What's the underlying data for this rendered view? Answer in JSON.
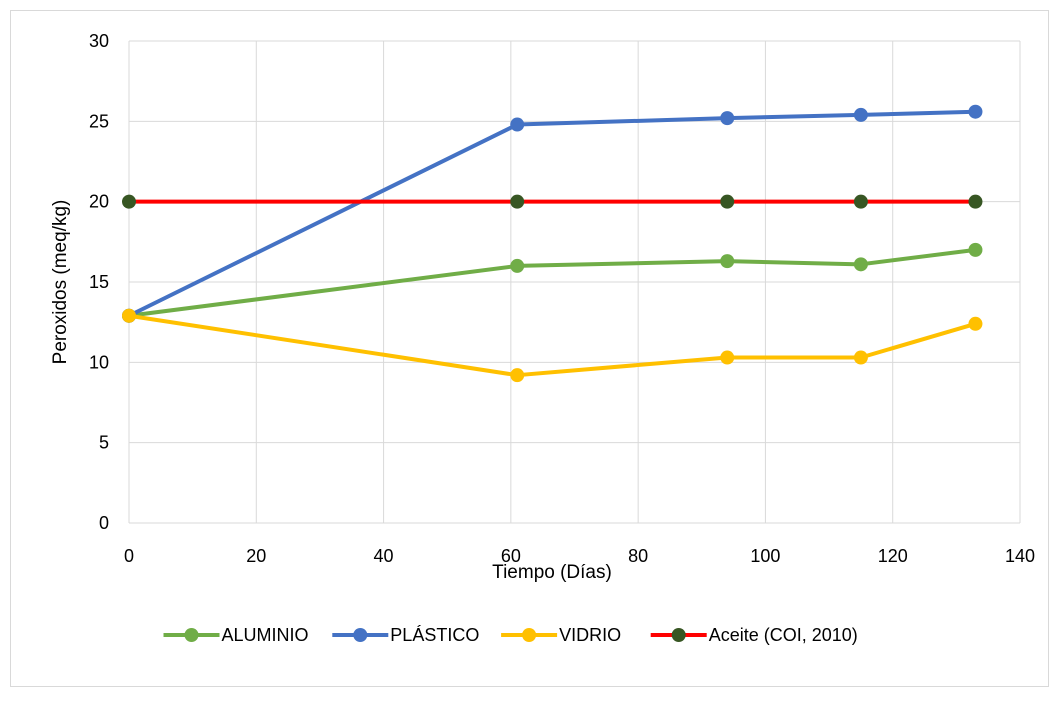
{
  "chart_data": {
    "type": "line",
    "title": "",
    "xlabel": "Tiempo (Días)",
    "ylabel": "Peroxidos (meq/kg)",
    "xlim": [
      0,
      140
    ],
    "ylim": [
      0,
      30
    ],
    "xticks": [
      0,
      20,
      40,
      60,
      80,
      100,
      120,
      140
    ],
    "yticks": [
      0,
      5,
      10,
      15,
      20,
      25,
      30
    ],
    "grid": true,
    "legend_position": "bottom",
    "series": [
      {
        "name": "ALUMINIO",
        "color": "#70AD47",
        "x": [
          0,
          61,
          94,
          115,
          133
        ],
        "y": [
          12.9,
          16.0,
          16.3,
          16.1,
          17.0
        ]
      },
      {
        "name": "PLÁSTICO",
        "color": "#4472C4",
        "x": [
          0,
          61,
          94,
          115,
          133
        ],
        "y": [
          12.9,
          24.8,
          25.2,
          25.4,
          25.6
        ]
      },
      {
        "name": "VIDRIO",
        "color": "#FFC000",
        "x": [
          0,
          61,
          94,
          115,
          133
        ],
        "y": [
          12.9,
          9.2,
          10.3,
          10.3,
          12.4
        ]
      },
      {
        "name": "Aceite (COI, 2010)",
        "color": "#FF0000",
        "marker_color": "#375623",
        "x": [
          0,
          61,
          94,
          115,
          133
        ],
        "y": [
          20,
          20,
          20,
          20,
          20
        ]
      }
    ]
  }
}
